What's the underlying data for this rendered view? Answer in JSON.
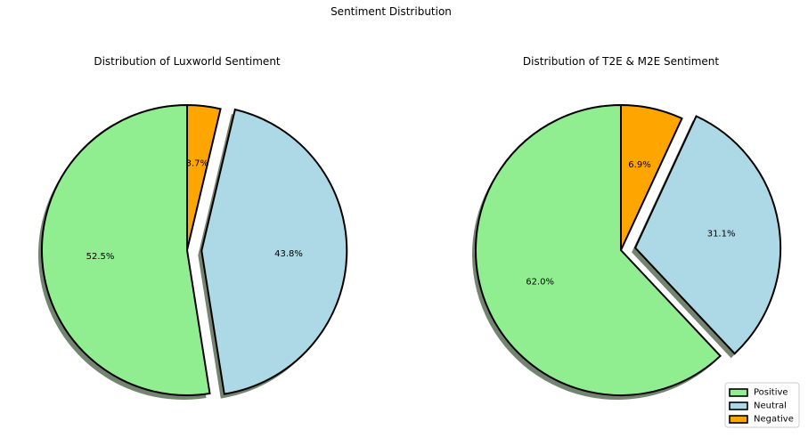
{
  "figure": {
    "suptitle": "Sentiment Distribution"
  },
  "legend": {
    "placement": "lower-right",
    "entries": [
      {
        "label": "Positive",
        "color": "#90EE90"
      },
      {
        "label": "Neutral",
        "color": "#ADD8E6"
      },
      {
        "label": "Negative",
        "color": "#FFA500"
      }
    ]
  },
  "chart_data": [
    {
      "type": "pie",
      "title": "Distribution of Luxworld Sentiment",
      "labels": [
        "Positive",
        "Neutral",
        "Negative"
      ],
      "values": [
        52.5,
        43.8,
        3.7
      ],
      "value_labels": [
        "52.5%",
        "43.8%",
        "3.7%"
      ],
      "colors": [
        "#90EE90",
        "#ADD8E6",
        "#FFA500"
      ],
      "exploded": [
        "Neutral"
      ],
      "start_angle_deg": 90,
      "direction": "counterclockwise",
      "shadow": true
    },
    {
      "type": "pie",
      "title": "Distribution of T2E & M2E Sentiment",
      "labels": [
        "Positive",
        "Neutral",
        "Negative"
      ],
      "values": [
        62.0,
        31.1,
        6.9
      ],
      "value_labels": [
        "62.0%",
        "31.1%",
        "6.9%"
      ],
      "colors": [
        "#90EE90",
        "#ADD8E6",
        "#FFA500"
      ],
      "exploded": [
        "Neutral"
      ],
      "start_angle_deg": 90,
      "direction": "counterclockwise",
      "shadow": true
    }
  ]
}
